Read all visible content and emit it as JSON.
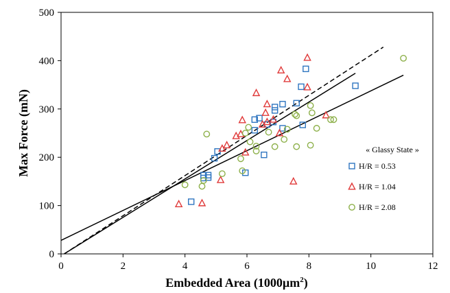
{
  "chart_data": {
    "type": "scatter",
    "xlabel": "Embedded Area (1000µm²)",
    "xlabel_base": "Embedded Area (1000µm",
    "xlabel_sup": "2",
    "xlabel_tail": ")",
    "ylabel": "Max Force (mN)",
    "xlim": [
      0,
      12
    ],
    "ylim": [
      0,
      500
    ],
    "xticks": [
      0,
      2,
      4,
      6,
      8,
      10,
      12
    ],
    "yticks": [
      0,
      100,
      200,
      300,
      400,
      500
    ],
    "grid": false,
    "legend": {
      "title": "« Glassy State »",
      "placement": "right"
    },
    "series": [
      {
        "name": "H/R = 0.53",
        "marker": "square",
        "color": "#2e75c0",
        "points": [
          [
            4.2,
            108
          ],
          [
            4.6,
            157
          ],
          [
            4.6,
            163
          ],
          [
            4.75,
            158
          ],
          [
            4.75,
            163
          ],
          [
            4.95,
            198
          ],
          [
            5.05,
            212
          ],
          [
            5.95,
            168
          ],
          [
            6.25,
            256
          ],
          [
            6.25,
            278
          ],
          [
            6.4,
            281
          ],
          [
            6.55,
            205
          ],
          [
            6.65,
            268
          ],
          [
            6.85,
            273
          ],
          [
            6.9,
            297
          ],
          [
            6.9,
            304
          ],
          [
            7.15,
            260
          ],
          [
            7.15,
            310
          ],
          [
            7.6,
            312
          ],
          [
            7.8,
            267
          ],
          [
            7.9,
            383
          ],
          [
            7.75,
            346
          ],
          [
            9.5,
            348
          ]
        ],
        "fit": [
          [
            0.1,
            0
          ],
          [
            9.5,
            374
          ]
        ],
        "fit_style": "solid"
      },
      {
        "name": "H/R = 1.04",
        "marker": "triangle",
        "color": "#e03a3a",
        "points": [
          [
            3.8,
            103
          ],
          [
            4.55,
            105
          ],
          [
            5.15,
            153
          ],
          [
            5.2,
            218
          ],
          [
            5.35,
            225
          ],
          [
            5.65,
            244
          ],
          [
            5.8,
            248
          ],
          [
            5.85,
            277
          ],
          [
            5.95,
            210
          ],
          [
            6.3,
            333
          ],
          [
            6.5,
            268
          ],
          [
            6.6,
            292
          ],
          [
            6.65,
            310
          ],
          [
            6.65,
            273
          ],
          [
            6.85,
            278
          ],
          [
            7.05,
            250
          ],
          [
            7.1,
            380
          ],
          [
            7.3,
            362
          ],
          [
            7.5,
            150
          ],
          [
            7.95,
            406
          ],
          [
            7.95,
            345
          ],
          [
            8.55,
            287
          ]
        ],
        "fit": [
          [
            0.1,
            0
          ],
          [
            10.4,
            428
          ]
        ],
        "fit_style": "dashed"
      },
      {
        "name": "H/R = 2.08",
        "marker": "circle",
        "color": "#8db04a",
        "points": [
          [
            4.0,
            143
          ],
          [
            4.55,
            140
          ],
          [
            4.6,
            152
          ],
          [
            4.7,
            248
          ],
          [
            5.2,
            166
          ],
          [
            5.8,
            197
          ],
          [
            5.85,
            172
          ],
          [
            5.95,
            250
          ],
          [
            6.05,
            262
          ],
          [
            6.1,
            232
          ],
          [
            6.3,
            223
          ],
          [
            6.3,
            213
          ],
          [
            6.7,
            252
          ],
          [
            6.9,
            222
          ],
          [
            7.2,
            237
          ],
          [
            7.3,
            258
          ],
          [
            7.55,
            289
          ],
          [
            7.6,
            286
          ],
          [
            7.6,
            222
          ],
          [
            8.05,
            225
          ],
          [
            8.05,
            307
          ],
          [
            8.1,
            292
          ],
          [
            8.25,
            260
          ],
          [
            8.7,
            278
          ],
          [
            8.8,
            278
          ],
          [
            11.05,
            405
          ]
        ],
        "fit": [
          [
            0,
            28
          ],
          [
            11.05,
            370
          ]
        ],
        "fit_style": "solid"
      }
    ]
  }
}
